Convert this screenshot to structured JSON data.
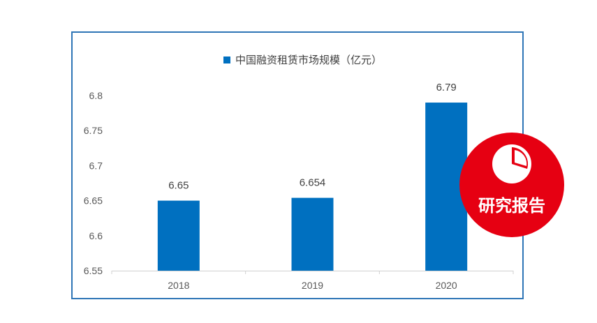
{
  "chart_data": {
    "type": "bar",
    "categories": [
      "2018",
      "2019",
      "2020"
    ],
    "series": [
      {
        "name": "中国融资租赁市场规模（亿元）",
        "values": [
          6.65,
          6.654,
          6.79
        ]
      }
    ],
    "data_labels": [
      "6.65",
      "6.654",
      "6.79"
    ],
    "yticks": [
      "6.55",
      "6.6",
      "6.65",
      "6.7",
      "6.75",
      "6.8"
    ],
    "ylim": [
      6.55,
      6.8
    ],
    "grid": false,
    "legend_position": "top",
    "bar_color": "#0070c0"
  },
  "badge": {
    "label": "研究报告",
    "color": "#e60012",
    "icon": "pie-chart-icon"
  }
}
